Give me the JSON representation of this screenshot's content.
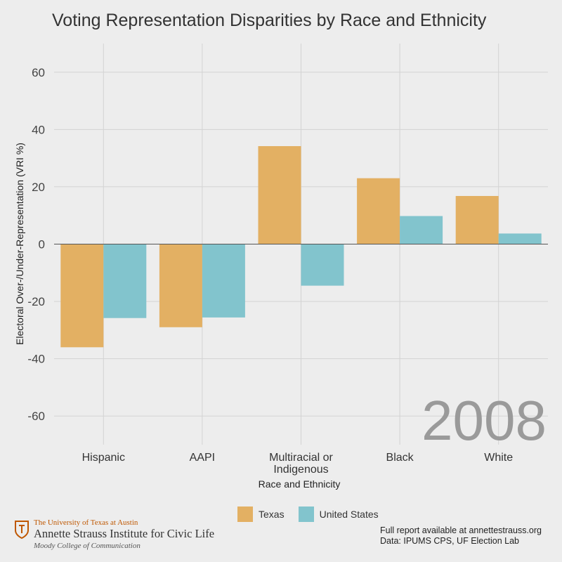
{
  "title": "Voting Representation Disparities by Race and Ethnicity",
  "year_label": "2008",
  "chart_data": {
    "type": "bar",
    "title": "Voting Representation Disparities by Race and Ethnicity",
    "xlabel": "Race and Ethnicity",
    "ylabel": "Electoral Over-/Under-Representation (VRI %)",
    "categories": [
      "Hispanic",
      "AAPI",
      "Multiracial or Indigenous",
      "Black",
      "White"
    ],
    "category_lines": [
      [
        "Hispanic"
      ],
      [
        "AAPI"
      ],
      [
        "Multiracial or",
        "Indigenous"
      ],
      [
        "Black"
      ],
      [
        "White"
      ]
    ],
    "series": [
      {
        "name": "Texas",
        "color": "#e3b063",
        "values": [
          -36,
          -29,
          34.2,
          23,
          16.8
        ]
      },
      {
        "name": "United States",
        "color": "#82c4cd",
        "values": [
          -25.8,
          -25.6,
          -14.5,
          9.8,
          3.7
        ]
      }
    ],
    "ylim": [
      -70,
      70
    ],
    "yticks": [
      -60,
      -40,
      -20,
      0,
      20,
      40,
      60
    ],
    "grid": true,
    "legend_position": "bottom"
  },
  "legend": {
    "items": [
      {
        "label": "Texas",
        "color": "#e3b063"
      },
      {
        "label": "United States",
        "color": "#82c4cd"
      }
    ]
  },
  "footer": {
    "university": "The University of Texas at Austin",
    "institute": "Annette Strauss Institute for Civic Life",
    "college": "Moody College of Communication",
    "report_line": "Full report available at annettestrauss.org",
    "data_line": "Data: IPUMS CPS, UF Election Lab",
    "logo_icon": "ut-seal-icon"
  }
}
